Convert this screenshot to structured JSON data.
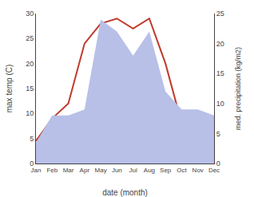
{
  "chart_data": {
    "type": "line",
    "categories": [
      "Jan",
      "Feb",
      "Mar",
      "Apr",
      "May",
      "Jun",
      "Jul",
      "Aug",
      "Sep",
      "Oct",
      "Nov",
      "Dec"
    ],
    "xlabel": "date (month)",
    "ylabel": "max temp (C)",
    "y2label": "med. precipitation (kg/m2)",
    "series": [
      {
        "type": "area",
        "axis": "y2",
        "color": "#b8c0e8",
        "values": [
          3.5,
          8.0,
          8.0,
          9.0,
          24.0,
          22.0,
          18.0,
          22.0,
          12.0,
          9.0,
          9.0,
          8.0
        ]
      },
      {
        "type": "line",
        "color": "#c0392b",
        "values": [
          4.5,
          9.0,
          12.0,
          24.0,
          28.0,
          29.0,
          27.0,
          29.0,
          20.0,
          8.0,
          6.5,
          7.0
        ]
      }
    ],
    "ylim": [
      0,
      30
    ],
    "yticks": [
      0,
      5,
      10,
      15,
      20,
      25,
      30
    ],
    "y2lim": [
      0,
      25
    ],
    "y2ticks": [
      0,
      5,
      10,
      15,
      20,
      25
    ],
    "grid": false
  }
}
